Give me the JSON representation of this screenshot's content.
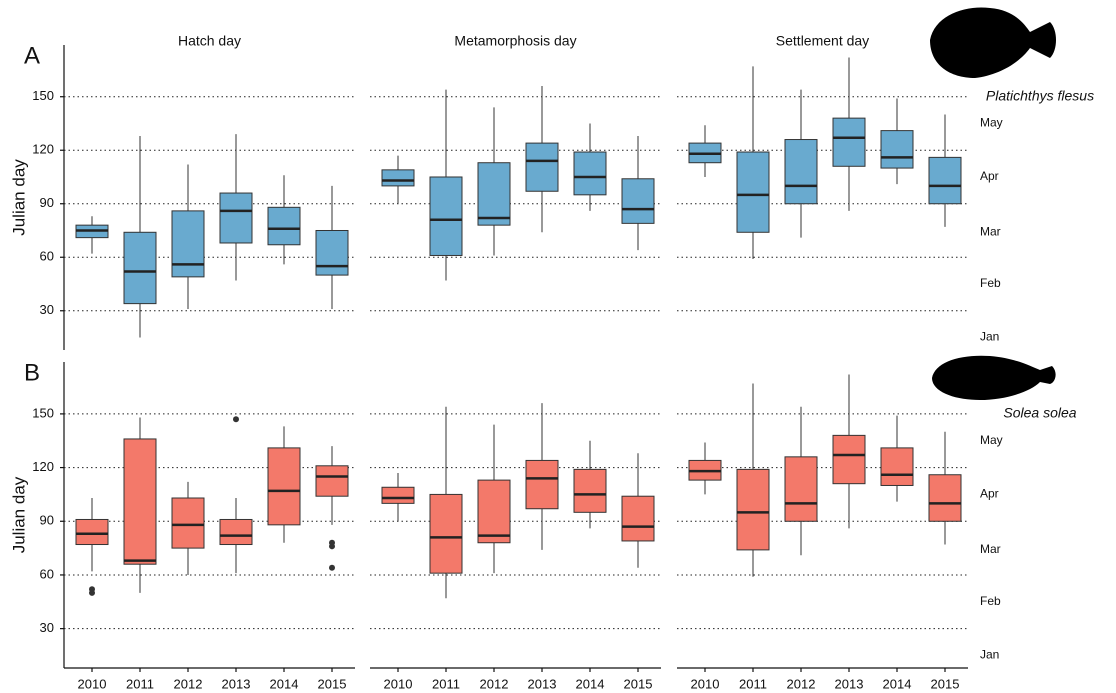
{
  "chart_data": [
    {
      "type": "box",
      "label": "A",
      "species": "Platichthys flesus",
      "ylabel": "Julian day",
      "color": "#69aacf",
      "ylim": [
        8,
        179
      ],
      "yticks": [
        30,
        60,
        90,
        120,
        150
      ],
      "grid": true,
      "y2ticks": [
        {
          "value": 15,
          "label": "Jan"
        },
        {
          "value": 45,
          "label": "Feb"
        },
        {
          "value": 74,
          "label": "Mar"
        },
        {
          "value": 105,
          "label": "Apr"
        },
        {
          "value": 135,
          "label": "May"
        }
      ],
      "facets": [
        {
          "title": "Hatch day",
          "boxes": [
            {
              "min": 62,
              "q1": 71,
              "median": 75,
              "q3": 78,
              "max": 83,
              "outliers": []
            },
            {
              "min": 15,
              "q1": 34,
              "median": 52,
              "q3": 74,
              "max": 128,
              "outliers": []
            },
            {
              "min": 31,
              "q1": 49,
              "median": 56,
              "q3": 86,
              "max": 112,
              "outliers": []
            },
            {
              "min": 47,
              "q1": 68,
              "median": 86,
              "q3": 96,
              "max": 129,
              "outliers": []
            },
            {
              "min": 56,
              "q1": 67,
              "median": 76,
              "q3": 88,
              "max": 106,
              "outliers": []
            },
            {
              "min": 31,
              "q1": 50,
              "median": 55,
              "q3": 75,
              "max": 100,
              "outliers": []
            }
          ]
        },
        {
          "title": "Metamorphosis day",
          "boxes": [
            {
              "min": 90,
              "q1": 100,
              "median": 103,
              "q3": 109,
              "max": 117,
              "outliers": []
            },
            {
              "min": 47,
              "q1": 61,
              "median": 81,
              "q3": 105,
              "max": 154,
              "outliers": []
            },
            {
              "min": 61,
              "q1": 78,
              "median": 82,
              "q3": 113,
              "max": 144,
              "outliers": []
            },
            {
              "min": 74,
              "q1": 97,
              "median": 114,
              "q3": 124,
              "max": 156,
              "outliers": []
            },
            {
              "min": 86,
              "q1": 95,
              "median": 105,
              "q3": 119,
              "max": 135,
              "outliers": []
            },
            {
              "min": 64,
              "q1": 79,
              "median": 87,
              "q3": 104,
              "max": 128,
              "outliers": []
            }
          ]
        },
        {
          "title": "Settlement day",
          "boxes": [
            {
              "min": 105,
              "q1": 113,
              "median": 118,
              "q3": 124,
              "max": 134,
              "outliers": []
            },
            {
              "min": 59,
              "q1": 74,
              "median": 95,
              "q3": 119,
              "max": 167,
              "outliers": []
            },
            {
              "min": 71,
              "q1": 90,
              "median": 100,
              "q3": 126,
              "max": 154,
              "outliers": []
            },
            {
              "min": 86,
              "q1": 111,
              "median": 127,
              "q3": 138,
              "max": 172,
              "outliers": []
            },
            {
              "min": 101,
              "q1": 110,
              "median": 116,
              "q3": 131,
              "max": 149,
              "outliers": []
            },
            {
              "min": 77,
              "q1": 90,
              "median": 100,
              "q3": 116,
              "max": 140,
              "outliers": []
            }
          ]
        }
      ]
    },
    {
      "type": "box",
      "label": "B",
      "species": "Solea solea",
      "ylabel": "Julian day",
      "color": "#f3796a",
      "ylim": [
        8,
        179
      ],
      "yticks": [
        30,
        60,
        90,
        120,
        150
      ],
      "grid": true,
      "y2ticks": [
        {
          "value": 15,
          "label": "Jan"
        },
        {
          "value": 45,
          "label": "Feb"
        },
        {
          "value": 74,
          "label": "Mar"
        },
        {
          "value": 105,
          "label": "Apr"
        },
        {
          "value": 135,
          "label": "May"
        }
      ],
      "categories": [
        "2010",
        "2011",
        "2012",
        "2013",
        "2014",
        "2015"
      ],
      "facets": [
        {
          "boxes": [
            {
              "min": 62,
              "q1": 77,
              "median": 83,
              "q3": 91,
              "max": 103,
              "outliers": [
                52,
                50
              ]
            },
            {
              "min": 50,
              "q1": 66,
              "median": 68,
              "q3": 136,
              "max": 148,
              "outliers": []
            },
            {
              "min": 60,
              "q1": 75,
              "median": 88,
              "q3": 103,
              "max": 112,
              "outliers": []
            },
            {
              "min": 61,
              "q1": 77,
              "median": 82,
              "q3": 91,
              "max": 103,
              "outliers": [
                147
              ]
            },
            {
              "min": 78,
              "q1": 88,
              "median": 107,
              "q3": 131,
              "max": 143,
              "outliers": []
            },
            {
              "min": 88,
              "q1": 104,
              "median": 115,
              "q3": 121,
              "max": 132,
              "outliers": [
                78,
                76,
                64
              ]
            }
          ]
        },
        {
          "boxes": [
            {
              "min": 90,
              "q1": 100,
              "median": 103,
              "q3": 109,
              "max": 117,
              "outliers": []
            },
            {
              "min": 47,
              "q1": 61,
              "median": 81,
              "q3": 105,
              "max": 154,
              "outliers": []
            },
            {
              "min": 61,
              "q1": 78,
              "median": 82,
              "q3": 113,
              "max": 144,
              "outliers": []
            },
            {
              "min": 74,
              "q1": 97,
              "median": 114,
              "q3": 124,
              "max": 156,
              "outliers": []
            },
            {
              "min": 86,
              "q1": 95,
              "median": 105,
              "q3": 119,
              "max": 135,
              "outliers": []
            },
            {
              "min": 64,
              "q1": 79,
              "median": 87,
              "q3": 104,
              "max": 128,
              "outliers": []
            }
          ]
        },
        {
          "boxes": [
            {
              "min": 105,
              "q1": 113,
              "median": 118,
              "q3": 124,
              "max": 134,
              "outliers": []
            },
            {
              "min": 59,
              "q1": 74,
              "median": 95,
              "q3": 119,
              "max": 167,
              "outliers": []
            },
            {
              "min": 71,
              "q1": 90,
              "median": 100,
              "q3": 126,
              "max": 154,
              "outliers": []
            },
            {
              "min": 86,
              "q1": 111,
              "median": 127,
              "q3": 138,
              "max": 172,
              "outliers": []
            },
            {
              "min": 101,
              "q1": 110,
              "median": 116,
              "q3": 131,
              "max": 149,
              "outliers": []
            },
            {
              "min": 77,
              "q1": 90,
              "median": 100,
              "q3": 116,
              "max": 140,
              "outliers": []
            }
          ]
        }
      ]
    }
  ]
}
